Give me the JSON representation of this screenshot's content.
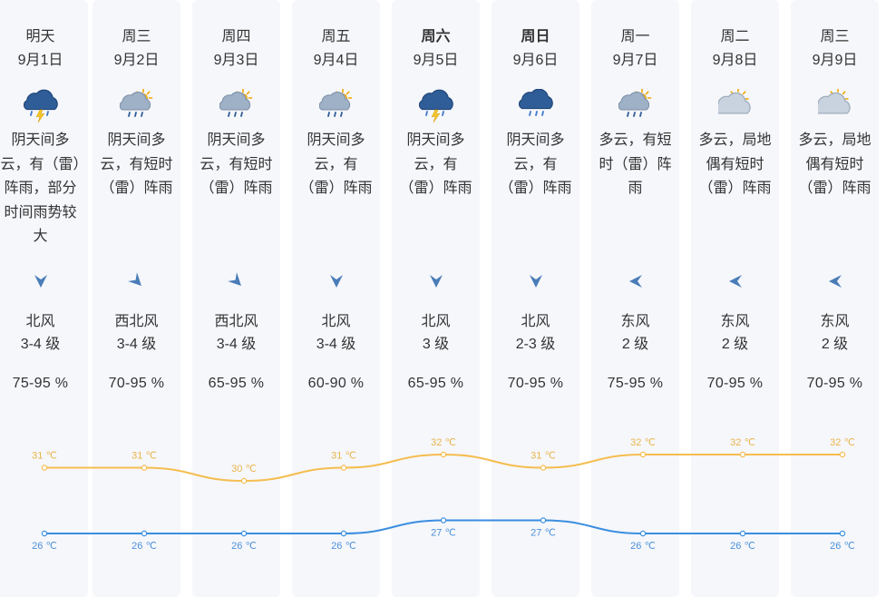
{
  "days": [
    {
      "day": "明天",
      "date": "9月1日",
      "bold": false,
      "icon": "thunder-rain-icon",
      "desc": "阴天间多云，有（雷）阵雨，部分时间雨势较大",
      "wind_dir": "北风",
      "wind_dir_icon": "arrow-down-icon",
      "wind_level": "3-4 级",
      "humidity": "75-95 %",
      "high": "31 ℃",
      "low": "26 ℃"
    },
    {
      "day": "周三",
      "date": "9月2日",
      "bold": false,
      "icon": "partly-cloudy-rain-icon",
      "desc": "阴天间多云，有短时（雷）阵雨",
      "wind_dir": "西北风",
      "wind_dir_icon": "arrow-down-right-icon",
      "wind_level": "3-4 级",
      "humidity": "70-95 %",
      "high": "31 ℃",
      "low": "26 ℃"
    },
    {
      "day": "周四",
      "date": "9月3日",
      "bold": false,
      "icon": "partly-cloudy-rain-icon",
      "desc": "阴天间多云，有短时（雷）阵雨",
      "wind_dir": "西北风",
      "wind_dir_icon": "arrow-down-right-icon",
      "wind_level": "3-4 级",
      "humidity": "65-95 %",
      "high": "30 ℃",
      "low": "26 ℃"
    },
    {
      "day": "周五",
      "date": "9月4日",
      "bold": false,
      "icon": "partly-cloudy-rain-icon",
      "desc": "阴天间多云，有（雷）阵雨",
      "wind_dir": "北风",
      "wind_dir_icon": "arrow-down-icon",
      "wind_level": "3-4 级",
      "humidity": "60-90 %",
      "high": "31 ℃",
      "low": "26 ℃"
    },
    {
      "day": "周六",
      "date": "9月5日",
      "bold": true,
      "icon": "thunder-rain-icon",
      "desc": "阴天间多云，有（雷）阵雨",
      "wind_dir": "北风",
      "wind_dir_icon": "arrow-down-icon",
      "wind_level": "3 级",
      "humidity": "65-95 %",
      "high": "32 ℃",
      "low": "27 ℃"
    },
    {
      "day": "周日",
      "date": "9月6日",
      "bold": true,
      "icon": "cloud-rain-icon",
      "desc": "阴天间多云，有（雷）阵雨",
      "wind_dir": "北风",
      "wind_dir_icon": "arrow-down-icon",
      "wind_level": "2-3 级",
      "humidity": "70-95 %",
      "high": "31 ℃",
      "low": "27 ℃"
    },
    {
      "day": "周一",
      "date": "9月7日",
      "bold": false,
      "icon": "partly-cloudy-rain-icon",
      "desc": "多云，有短时（雷）阵雨",
      "wind_dir": "东风",
      "wind_dir_icon": "arrow-left-icon",
      "wind_level": "2 级",
      "humidity": "75-95 %",
      "high": "32 ℃",
      "low": "26 ℃"
    },
    {
      "day": "周二",
      "date": "9月8日",
      "bold": false,
      "icon": "sun-cloud-icon",
      "desc": "多云，局地偶有短时（雷）阵雨",
      "wind_dir": "东风",
      "wind_dir_icon": "arrow-left-icon",
      "wind_level": "2 级",
      "humidity": "70-95 %",
      "high": "32 ℃",
      "low": "26 ℃"
    },
    {
      "day": "周三",
      "date": "9月9日",
      "bold": false,
      "icon": "sun-cloud-icon",
      "desc": "多云，局地偶有短时（雷）阵雨",
      "wind_dir": "东风",
      "wind_dir_icon": "arrow-left-icon",
      "wind_level": "2 级",
      "humidity": "70-95 %",
      "high": "32 ℃",
      "low": "26 ℃"
    }
  ],
  "chart_data": {
    "type": "line",
    "categories": [
      "9月1日",
      "9月2日",
      "9月3日",
      "9月4日",
      "9月5日",
      "9月6日",
      "9月7日",
      "9月8日",
      "9月9日"
    ],
    "series": [
      {
        "values": [
          31,
          31,
          30,
          31,
          32,
          31,
          32,
          32,
          32
        ],
        "color": "#f5bd4f"
      },
      {
        "values": [
          26,
          26,
          26,
          26,
          27,
          27,
          26,
          26,
          26
        ],
        "color": "#3a8ee0"
      }
    ],
    "unit": "℃"
  },
  "colors": {
    "high_line": "#f5bd4f",
    "low_line": "#3a8ee0",
    "column_bg": "#f6f7fb",
    "icon_blue": "#4a7db8"
  }
}
